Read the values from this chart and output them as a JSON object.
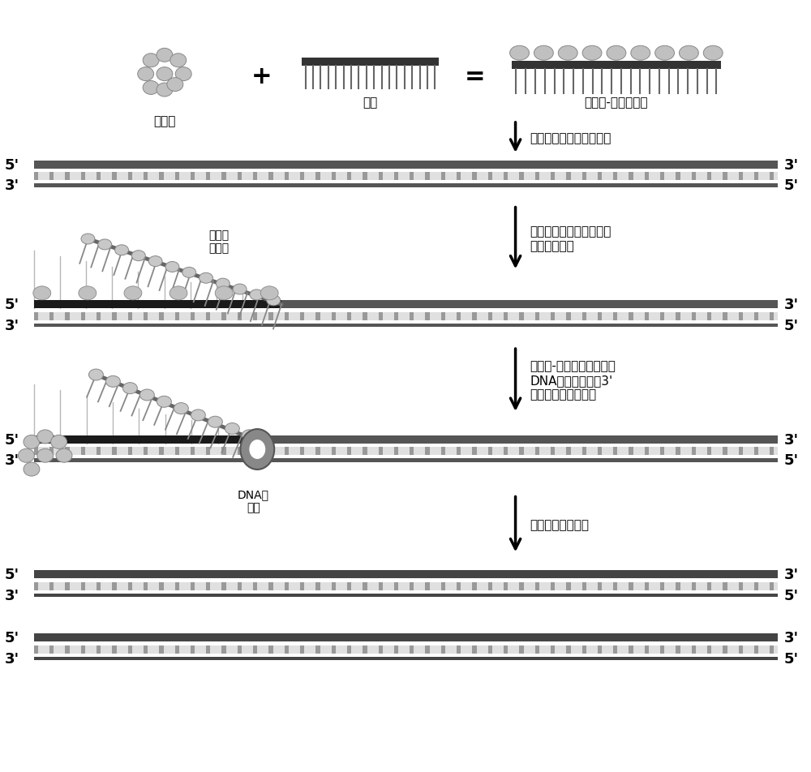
{
  "bg_color": "#ffffff",
  "text_color": "#000000",
  "dna_dark_color": "#555555",
  "dna_stripe_color": "#aaaaaa",
  "arrow_color": "#000000",
  "labels": {
    "enzyme": "重组酶",
    "primer": "引物",
    "complex": "重组酶-引物复合体",
    "step1": "寻找目标核酸上互补区域",
    "step2": "在单链结合蛋白的帮助下\n进行同源重组",
    "step3": "重组酶-引物复合体解体，\nDNA聚合酶与引物3'\n端结合，子链的延伸",
    "step4": "循环不断产生新链",
    "ssb": "单链结\n合蛋白",
    "dna_pol": "DNA聚\n合酶"
  },
  "five_prime": "5'",
  "three_prime": "3'",
  "font_size_label": 13,
  "font_size_text": 11,
  "font_size_arrow_label": 11
}
